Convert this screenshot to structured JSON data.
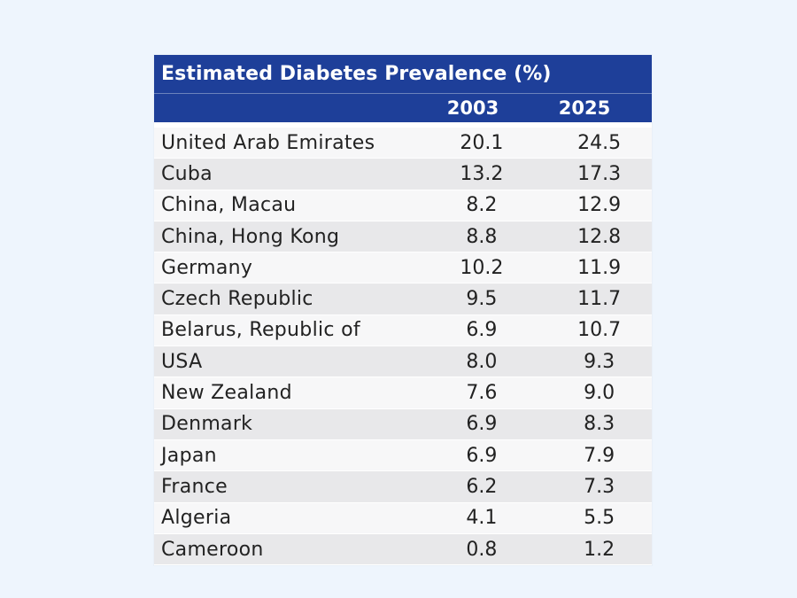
{
  "chart_data": {
    "type": "table",
    "title": "Estimated Diabetes Prevalence (%)",
    "columns": [
      "2003",
      "2025"
    ],
    "rows": [
      {
        "country": "United Arab Emirates",
        "v2003": "20.1",
        "v2025": "24.5"
      },
      {
        "country": "Cuba",
        "v2003": "13.2",
        "v2025": "17.3"
      },
      {
        "country": "China, Macau",
        "v2003": "8.2",
        "v2025": "12.9"
      },
      {
        "country": "China, Hong Kong",
        "v2003": "8.8",
        "v2025": "12.8"
      },
      {
        "country": "Germany",
        "v2003": "10.2",
        "v2025": "11.9"
      },
      {
        "country": "Czech Republic",
        "v2003": "9.5",
        "v2025": "11.7"
      },
      {
        "country": "Belarus, Republic of",
        "v2003": "6.9",
        "v2025": "10.7"
      },
      {
        "country": "USA",
        "v2003": "8.0",
        "v2025": "9.3"
      },
      {
        "country": "New Zealand",
        "v2003": "7.6",
        "v2025": "9.0"
      },
      {
        "country": "Denmark",
        "v2003": "6.9",
        "v2025": "8.3"
      },
      {
        "country": "Japan",
        "v2003": "6.9",
        "v2025": "7.9"
      },
      {
        "country": "France",
        "v2003": "6.2",
        "v2025": "7.3"
      },
      {
        "country": "Algeria",
        "v2003": "4.1",
        "v2025": "5.5"
      },
      {
        "country": "Cameroon",
        "v2003": "0.8",
        "v2025": "1.2"
      }
    ]
  },
  "colors": {
    "header_bg": "#1e3f99",
    "row_light": "#f7f7f8",
    "row_dark": "#e8e8ea",
    "page_bg": "#eef5fd"
  }
}
